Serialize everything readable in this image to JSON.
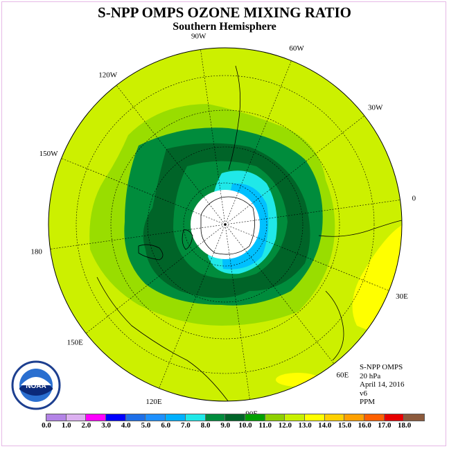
{
  "header": {
    "title": "S-NPP OMPS OZONE MIXING RATIO",
    "subtitle": "Southern Hemisphere"
  },
  "map": {
    "projection": "south-polar-stereographic",
    "longitude_labels": [
      "0",
      "30E",
      "60E",
      "90E",
      "120E",
      "150E",
      "180",
      "150W",
      "120W",
      "90W",
      "60W",
      "30W"
    ],
    "colors": {
      "background_field": "#ccf000",
      "polar_night": "#ffffff"
    }
  },
  "info": {
    "instrument": "S-NPP OMPS",
    "level": "20 hPa",
    "date": "April 14, 2016",
    "version": "v6",
    "units": "PPM"
  },
  "colorbar": {
    "tick_labels": [
      "0.0",
      "1.0",
      "2.0",
      "3.0",
      "4.0",
      "5.0",
      "6.0",
      "7.0",
      "8.0",
      "9.0",
      "10.0",
      "11.0",
      "12.0",
      "13.0",
      "14.0",
      "15.0",
      "16.0",
      "17.0",
      "18.0"
    ],
    "colors": [
      "#b383e6",
      "#dcb0f0",
      "#ff00ff",
      "#0000ff",
      "#1e6fe8",
      "#1e90ff",
      "#00b0ff",
      "#20e8e8",
      "#008c3c",
      "#006428",
      "#00a000",
      "#8ed000",
      "#c8f000",
      "#ffff00",
      "#ffd000",
      "#ffa000",
      "#ff6000",
      "#e60000",
      "#8c5a3c"
    ]
  },
  "logo": {
    "text": "NOAA",
    "icon": "noaa-logo-icon"
  }
}
